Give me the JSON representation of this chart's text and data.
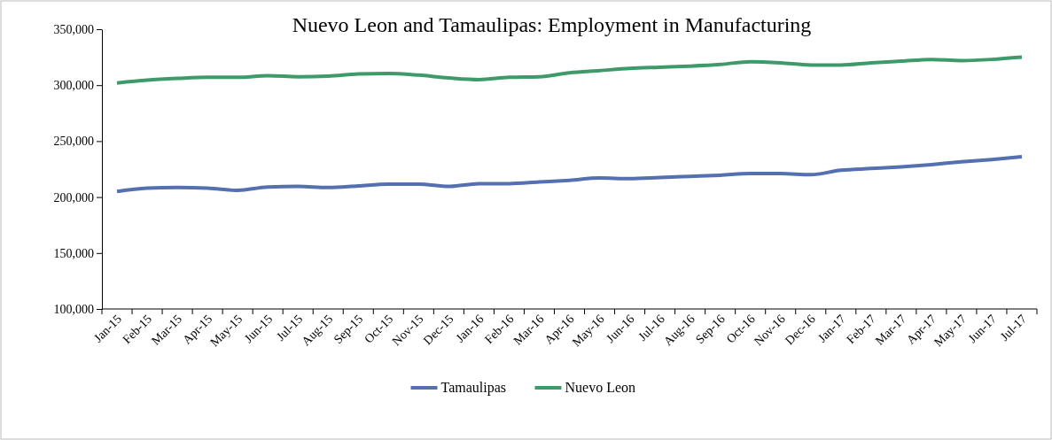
{
  "chart_data": {
    "type": "line",
    "title": "Nuevo Leon and Tamaulipas: Employment in Manufacturing",
    "categories": [
      "Jan-15",
      "Feb-15",
      "Mar-15",
      "Apr-15",
      "May-15",
      "Jun-15",
      "Jul-15",
      "Aug-15",
      "Sep-15",
      "Oct-15",
      "Nov-15",
      "Dec-15",
      "Jan-16",
      "Feb-16",
      "Mar-16",
      "Apr-16",
      "May-16",
      "Jun-16",
      "Jul-16",
      "Aug-16",
      "Sep-16",
      "Oct-16",
      "Nov-16",
      "Dec-16",
      "Jan-17",
      "Feb-17",
      "Mar-17",
      "Apr-17",
      "May-17",
      "Jun-17",
      "Jul-17"
    ],
    "series": [
      {
        "name": "Tamaulipas",
        "color": "#5470b0",
        "values": [
          205000,
          208000,
          208500,
          208000,
          206000,
          209000,
          209500,
          208500,
          210000,
          211500,
          211500,
          209500,
          212000,
          212000,
          213500,
          215000,
          217000,
          216500,
          217500,
          218500,
          219500,
          221000,
          221000,
          220000,
          224000,
          225500,
          227000,
          229000,
          231500,
          233500,
          236000
        ]
      },
      {
        "name": "Nuevo Leon",
        "color": "#3f9a6a",
        "values": [
          302000,
          304500,
          306000,
          307000,
          307000,
          308500,
          307500,
          308000,
          310000,
          310500,
          309000,
          306500,
          305000,
          307000,
          307500,
          311000,
          313000,
          315000,
          316000,
          317000,
          318500,
          321000,
          320000,
          318000,
          318000,
          320000,
          321500,
          323000,
          322000,
          323000,
          325000
        ]
      }
    ],
    "ylim": [
      100000,
      350000
    ],
    "yticks": [
      {
        "value": 100000,
        "label": "100,000"
      },
      {
        "value": 150000,
        "label": "150,000"
      },
      {
        "value": 200000,
        "label": "200,000"
      },
      {
        "value": 250000,
        "label": "250,000"
      },
      {
        "value": 300000,
        "label": "300,000"
      },
      {
        "value": 350000,
        "label": "350,000"
      }
    ],
    "legend": "bottom",
    "grid": false,
    "marker": "none",
    "line_style": "solid"
  }
}
